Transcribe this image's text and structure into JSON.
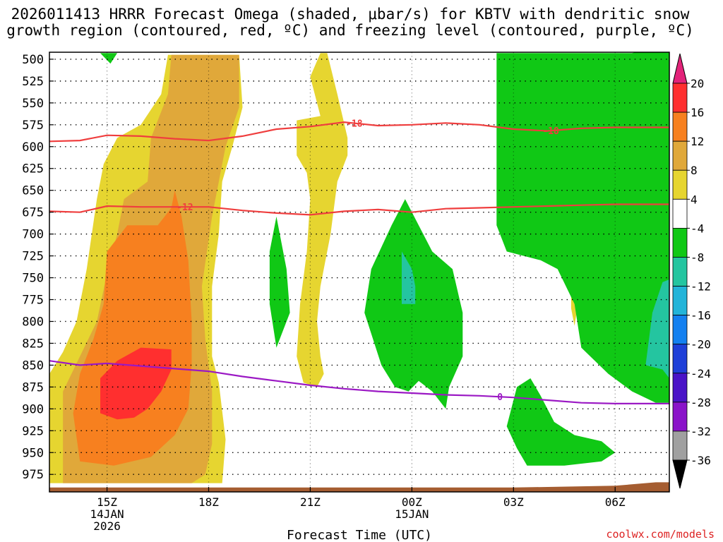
{
  "chart_data": {
    "type": "heatmap",
    "title_lines": [
      "2026011413 HRRR Forecast Omega (shaded, μbar/s) for KBTV with dendritic snow",
      "growth region (contoured, red, ºC) and freezing level (contoured, purple, ºC)"
    ],
    "xlabel": "Forecast Time (UTC)",
    "ylabel": "Pressure (mb)",
    "credit": "coolwx.com/models",
    "x_range_hours": [
      -1.7,
      16.6
    ],
    "y_range_mb": [
      492,
      995
    ],
    "x_ticks": [
      {
        "hour": 0,
        "lines": [
          "15Z",
          "14JAN",
          "2026"
        ]
      },
      {
        "hour": 3,
        "lines": [
          "18Z"
        ]
      },
      {
        "hour": 6,
        "lines": [
          "21Z"
        ]
      },
      {
        "hour": 9,
        "lines": [
          "00Z",
          "15JAN"
        ]
      },
      {
        "hour": 12,
        "lines": [
          "03Z"
        ]
      },
      {
        "hour": 15,
        "lines": [
          "06Z"
        ]
      }
    ],
    "y_ticks": [
      500,
      525,
      550,
      575,
      600,
      625,
      650,
      675,
      700,
      725,
      750,
      775,
      800,
      825,
      850,
      875,
      900,
      925,
      950,
      975
    ],
    "colorbar": {
      "labels": [
        20,
        16,
        12,
        8,
        4,
        -4,
        -8,
        -12,
        -16,
        -20,
        -24,
        -28,
        -32,
        -36
      ],
      "colors": [
        "#ff2f2f",
        "#f7801f",
        "#e0a83a",
        "#e6d530",
        "#ffffff",
        "#10c815",
        "#24c5a0",
        "#23b4d9",
        "#1480f0",
        "#1f3fd8",
        "#4a13c7",
        "#8a13c9",
        "#a0a0a0"
      ],
      "top_arrow_color": "#e3237a",
      "bottom_arrow_color": "#000000"
    },
    "contours": [
      {
        "name": "dgz-minus-18",
        "label": "-18",
        "color": "#ef3e3e",
        "points": [
          [
            -1.7,
            594
          ],
          [
            -0.8,
            593
          ],
          [
            0,
            587
          ],
          [
            1,
            588
          ],
          [
            2,
            591
          ],
          [
            3,
            593
          ],
          [
            4,
            588
          ],
          [
            5,
            580
          ],
          [
            6,
            577
          ],
          [
            7,
            572
          ],
          [
            8,
            576
          ],
          [
            9,
            575
          ],
          [
            10,
            573
          ],
          [
            11,
            575
          ],
          [
            12,
            580
          ],
          [
            13,
            582
          ],
          [
            14,
            579
          ],
          [
            15,
            578
          ],
          [
            16.6,
            578
          ]
        ]
      },
      {
        "name": "dgz-minus-12",
        "label": "-12",
        "color": "#ef3e3e",
        "points": [
          [
            -1.7,
            674
          ],
          [
            -0.8,
            675
          ],
          [
            0,
            668
          ],
          [
            1,
            669
          ],
          [
            2,
            669
          ],
          [
            3,
            669
          ],
          [
            4,
            673
          ],
          [
            5,
            676
          ],
          [
            6,
            678
          ],
          [
            7,
            674
          ],
          [
            8,
            672
          ],
          [
            9,
            675
          ],
          [
            10,
            671
          ],
          [
            11,
            670
          ],
          [
            12,
            669
          ],
          [
            13,
            668
          ],
          [
            14,
            667
          ],
          [
            15,
            666
          ],
          [
            16.6,
            666
          ]
        ]
      },
      {
        "name": "freezing-level",
        "label": "0",
        "color": "#9b19c4",
        "points": [
          [
            -1.7,
            845
          ],
          [
            -0.8,
            850
          ],
          [
            0,
            848
          ],
          [
            1,
            851
          ],
          [
            2,
            854
          ],
          [
            3,
            857
          ],
          [
            4,
            863
          ],
          [
            5,
            868
          ],
          [
            6,
            873
          ],
          [
            7,
            877
          ],
          [
            8,
            880
          ],
          [
            9,
            882
          ],
          [
            10,
            884
          ],
          [
            11,
            885
          ],
          [
            12,
            887
          ],
          [
            13,
            890
          ],
          [
            14,
            893
          ],
          [
            15,
            894
          ],
          [
            16.6,
            894
          ]
        ]
      }
    ],
    "shaded_regions": [
      {
        "name": "omega-4-8-main",
        "level": 4,
        "color": "#e6d530",
        "points": [
          [
            -1.7,
            985
          ],
          [
            -1.7,
            860
          ],
          [
            -1.3,
            835
          ],
          [
            -0.9,
            800
          ],
          [
            -0.6,
            740
          ],
          [
            -0.3,
            660
          ],
          [
            -0.1,
            620
          ],
          [
            0.3,
            590
          ],
          [
            1,
            575
          ],
          [
            1.6,
            540
          ],
          [
            1.8,
            495
          ],
          [
            3.9,
            495
          ],
          [
            4,
            555
          ],
          [
            3.7,
            600
          ],
          [
            3.4,
            640
          ],
          [
            3.3,
            700
          ],
          [
            3.1,
            760
          ],
          [
            3.1,
            840
          ],
          [
            3.3,
            870
          ],
          [
            3.5,
            935
          ],
          [
            3.4,
            985
          ]
        ]
      },
      {
        "name": "omega-8-12-main",
        "level": 8,
        "color": "#e0a83a",
        "points": [
          [
            -1.3,
            985
          ],
          [
            -1.3,
            880
          ],
          [
            -0.8,
            840
          ],
          [
            -0.3,
            800
          ],
          [
            0,
            745
          ],
          [
            0.3,
            700
          ],
          [
            0.5,
            660
          ],
          [
            1.2,
            640
          ],
          [
            1.3,
            590
          ],
          [
            1.8,
            540
          ],
          [
            1.9,
            495
          ],
          [
            3.9,
            495
          ],
          [
            3.9,
            555
          ],
          [
            3.5,
            600
          ],
          [
            3.1,
            680
          ],
          [
            2.8,
            760
          ],
          [
            2.9,
            820
          ],
          [
            3.1,
            880
          ],
          [
            3.1,
            940
          ],
          [
            2.9,
            975
          ],
          [
            2.5,
            985
          ]
        ]
      },
      {
        "name": "omega-12-16-main",
        "level": 12,
        "color": "#f7801f",
        "points": [
          [
            -0.8,
            960
          ],
          [
            -1,
            905
          ],
          [
            -0.8,
            860
          ],
          [
            -0.4,
            820
          ],
          [
            -0.1,
            780
          ],
          [
            0,
            720
          ],
          [
            0.6,
            690
          ],
          [
            1.5,
            690
          ],
          [
            1.9,
            670
          ],
          [
            2,
            650
          ],
          [
            2.2,
            680
          ],
          [
            2.4,
            730
          ],
          [
            2.5,
            800
          ],
          [
            2.5,
            850
          ],
          [
            2.4,
            900
          ],
          [
            2,
            930
          ],
          [
            1.3,
            955
          ],
          [
            0.2,
            965
          ]
        ]
      },
      {
        "name": "omega-16-20-main",
        "level": 16,
        "color": "#ff2f2f",
        "points": [
          [
            -0.2,
            905
          ],
          [
            -0.2,
            865
          ],
          [
            0.3,
            845
          ],
          [
            1,
            830
          ],
          [
            1.9,
            832
          ],
          [
            1.9,
            855
          ],
          [
            1.6,
            880
          ],
          [
            1.2,
            900
          ],
          [
            0.8,
            910
          ],
          [
            0.3,
            912
          ]
        ]
      },
      {
        "name": "omega-4-8-column",
        "level": 4,
        "color": "#e6d530",
        "points": [
          [
            5.6,
            595
          ],
          [
            5.6,
            570
          ],
          [
            6.3,
            565
          ],
          [
            6,
            520
          ],
          [
            6.3,
            493
          ],
          [
            6.5,
            493
          ],
          [
            6.8,
            540
          ],
          [
            7.1,
            590
          ],
          [
            7.1,
            610
          ],
          [
            6.8,
            640
          ],
          [
            6.6,
            700
          ],
          [
            6.3,
            760
          ],
          [
            6.2,
            800
          ],
          [
            6.3,
            840
          ],
          [
            6.4,
            860
          ],
          [
            6.2,
            875
          ],
          [
            5.8,
            870
          ],
          [
            5.6,
            840
          ],
          [
            5.7,
            780
          ],
          [
            5.9,
            720
          ],
          [
            6,
            660
          ],
          [
            5.9,
            630
          ],
          [
            5.6,
            610
          ]
        ]
      },
      {
        "name": "omega-4-8-small",
        "level": 4,
        "color": "#e6d530",
        "points": [
          [
            13.7,
            765
          ],
          [
            13.8,
            760
          ],
          [
            13.9,
            780
          ],
          [
            13.8,
            805
          ],
          [
            13.7,
            785
          ]
        ]
      },
      {
        "name": "omega-neg4-top-left",
        "level": -4,
        "color": "#10c815",
        "points": [
          [
            -0.2,
            493
          ],
          [
            0.3,
            493
          ],
          [
            0.1,
            505
          ]
        ]
      },
      {
        "name": "omega-neg4-left-lens",
        "level": -4,
        "color": "#10c815",
        "points": [
          [
            4.8,
            720
          ],
          [
            5.0,
            680
          ],
          [
            5.3,
            740
          ],
          [
            5.4,
            790
          ],
          [
            5.0,
            830
          ],
          [
            4.8,
            780
          ]
        ]
      },
      {
        "name": "omega-neg4-center",
        "level": -4,
        "color": "#10c815",
        "points": [
          [
            7.6,
            790
          ],
          [
            7.8,
            740
          ],
          [
            8.4,
            690
          ],
          [
            8.8,
            660
          ],
          [
            9.6,
            720
          ],
          [
            10.2,
            740
          ],
          [
            10.5,
            790
          ],
          [
            10.5,
            840
          ],
          [
            10.1,
            875
          ],
          [
            10.0,
            900
          ],
          [
            9.6,
            880
          ],
          [
            9.2,
            868
          ],
          [
            8.9,
            880
          ],
          [
            8.5,
            875
          ],
          [
            8.1,
            850
          ]
        ]
      },
      {
        "name": "omega-neg4-right-top",
        "level": -4,
        "color": "#10c815",
        "points": [
          [
            11.5,
            493
          ],
          [
            15.5,
            493
          ],
          [
            16.6,
            483
          ],
          [
            16.6,
            893
          ],
          [
            16.2,
            893
          ],
          [
            15.5,
            880
          ],
          [
            14.8,
            860
          ],
          [
            14,
            830
          ],
          [
            13.8,
            780
          ],
          [
            13.3,
            740
          ],
          [
            12.8,
            730
          ],
          [
            11.8,
            720
          ],
          [
            11.5,
            690
          ],
          [
            11.5,
            600
          ],
          [
            11.5,
            500
          ]
        ]
      },
      {
        "name": "omega-neg4-right-bottom",
        "level": -4,
        "color": "#10c815",
        "points": [
          [
            11.8,
            920
          ],
          [
            12.1,
            875
          ],
          [
            12.5,
            865
          ],
          [
            12.8,
            885
          ],
          [
            13.2,
            915
          ],
          [
            13.8,
            930
          ],
          [
            14.6,
            937
          ],
          [
            15.0,
            950
          ],
          [
            14.6,
            960
          ],
          [
            13.5,
            965
          ],
          [
            12.4,
            965
          ],
          [
            12.1,
            945
          ]
        ]
      },
      {
        "name": "omega-neg8-center",
        "level": -8,
        "color": "#24c5a0",
        "points": [
          [
            8.7,
            740
          ],
          [
            8.7,
            720
          ],
          [
            9.0,
            740
          ],
          [
            9.1,
            760
          ],
          [
            9.1,
            780
          ],
          [
            8.7,
            780
          ]
        ]
      },
      {
        "name": "omega-neg8-right",
        "level": -8,
        "color": "#24c5a0",
        "points": [
          [
            15.9,
            850
          ],
          [
            16.0,
            820
          ],
          [
            16.1,
            790
          ],
          [
            16.4,
            755
          ],
          [
            16.6,
            752
          ],
          [
            16.6,
            865
          ],
          [
            16.4,
            855
          ]
        ]
      }
    ],
    "terrain": {
      "name": "surface-terrain",
      "color": "#a55d31",
      "points": [
        [
          -1.7,
          995
        ],
        [
          -1.7,
          990
        ],
        [
          8,
          990
        ],
        [
          12,
          990
        ],
        [
          15,
          988
        ],
        [
          16.2,
          984
        ],
        [
          16.6,
          984
        ],
        [
          16.6,
          995
        ]
      ]
    }
  }
}
